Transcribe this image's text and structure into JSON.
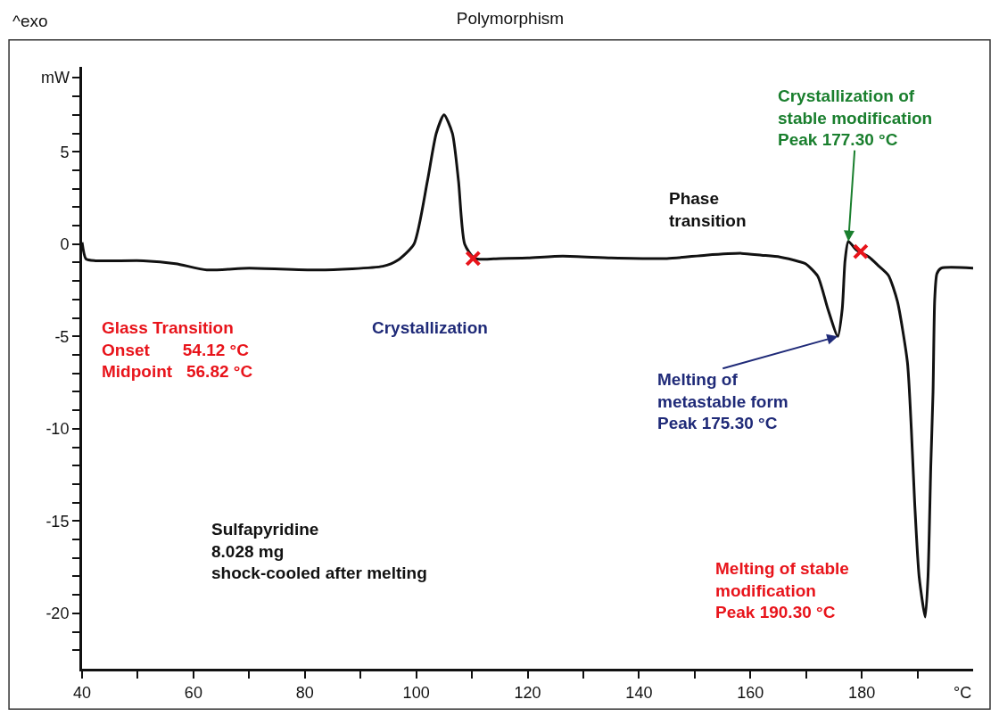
{
  "chart_data": {
    "type": "line",
    "title": "Polymorphism",
    "xlabel": "°C",
    "ylabel": "mW",
    "xlim": [
      40,
      200
    ],
    "ylim": [
      -23,
      9.6
    ],
    "xticks": [
      40,
      {
        "value": 50,
        "label": null
      },
      60,
      {
        "value": 70,
        "label": null
      },
      80,
      {
        "value": 90,
        "label": null
      },
      100,
      {
        "value": 110,
        "label": null
      },
      120,
      {
        "value": 130,
        "label": null
      },
      140,
      {
        "value": 150,
        "label": null
      },
      160,
      {
        "value": 170,
        "label": null
      },
      180,
      {
        "value": 190,
        "label": null
      }
    ],
    "yticks": [
      {
        "value": -22,
        "label": null
      },
      {
        "value": -21,
        "label": null
      },
      -20,
      {
        "value": -19,
        "label": null
      },
      {
        "value": -18,
        "label": null
      },
      {
        "value": -17,
        "label": null
      },
      {
        "value": -16,
        "label": null
      },
      -15,
      {
        "value": -14,
        "label": null
      },
      {
        "value": -13,
        "label": null
      },
      {
        "value": -12,
        "label": null
      },
      {
        "value": -11,
        "label": null
      },
      -10,
      {
        "value": -9,
        "label": null
      },
      {
        "value": -8,
        "label": null
      },
      {
        "value": -7,
        "label": null
      },
      {
        "value": -6,
        "label": null
      },
      -5,
      {
        "value": -4,
        "label": null
      },
      {
        "value": -3,
        "label": null
      },
      {
        "value": -2,
        "label": null
      },
      {
        "value": -1,
        "label": null
      },
      0,
      {
        "value": 1,
        "label": null
      },
      {
        "value": 2,
        "label": null
      },
      {
        "value": 3,
        "label": null
      },
      {
        "value": 4,
        "label": null
      },
      5,
      {
        "value": 6,
        "label": null
      },
      {
        "value": 7,
        "label": null
      },
      {
        "value": 8,
        "label": null
      },
      {
        "value": 9,
        "label": null
      }
    ],
    "marker": "none",
    "line_style": "solid",
    "series": [
      {
        "color": "#111111",
        "x": [
          40,
          40.7,
          42.4,
          51,
          56.8,
          62.4,
          70,
          82.4,
          94,
          96.7,
          99.6,
          102,
          103.6,
          105,
          106.5,
          107.6,
          108.7,
          110.5,
          115,
          120,
          126.3,
          135,
          145,
          152,
          158.4,
          162,
          165.3,
          168.8,
          169.9,
          172.1,
          173.9,
          175.7,
          176.5,
          177,
          177.6,
          179,
          181.3,
          183.1,
          184.8,
          186.4,
          188.2,
          188.9,
          189.5,
          190.3,
          191.4,
          191.9,
          192.4,
          192.8,
          193.1,
          193.5,
          194.3,
          200
        ],
        "values": [
          0.1,
          -0.8,
          -0.9,
          -0.9,
          -1.06,
          -1.4,
          -1.3,
          -1.4,
          -1.2,
          -0.87,
          0,
          3.4,
          6,
          7,
          6,
          3.4,
          0,
          -0.78,
          -0.78,
          -0.75,
          -0.65,
          -0.75,
          -0.78,
          -0.6,
          -0.5,
          -0.6,
          -0.7,
          -0.95,
          -1.06,
          -1.74,
          -3.5,
          -5,
          -3.5,
          -0.9,
          0.15,
          -0.3,
          -0.7,
          -1.2,
          -1.7,
          -3.1,
          -6.4,
          -10,
          -14,
          -18,
          -20.2,
          -18,
          -12,
          -8,
          -3,
          -1.6,
          -1.3,
          -1.3
        ]
      },
      {
        "type": "scatter",
        "marker": "cross",
        "color": "#e8141b",
        "x": [
          110.2,
          179.8
        ],
        "values": [
          -0.78,
          -0.4
        ]
      }
    ],
    "annotations": [
      "^exo",
      "Glass Transition\nOnset       54.12 °C\nMidpoint   56.82 °C",
      "Crystallization",
      "Phase\ntransition",
      {
        "text": "Crystallization of\nstable modification\nPeak 177.30 °C",
        "x": 177.6,
        "y": 0.15
      },
      {
        "text": "Melting of\nmetastable form\nPeak 175.30 °C",
        "x": 175.7,
        "y": -5
      },
      "Melting of stable\nmodification\nPeak 190.30 °C",
      "Sulfapyridine\n8.028 mg\nshock-cooled after melting"
    ]
  }
}
